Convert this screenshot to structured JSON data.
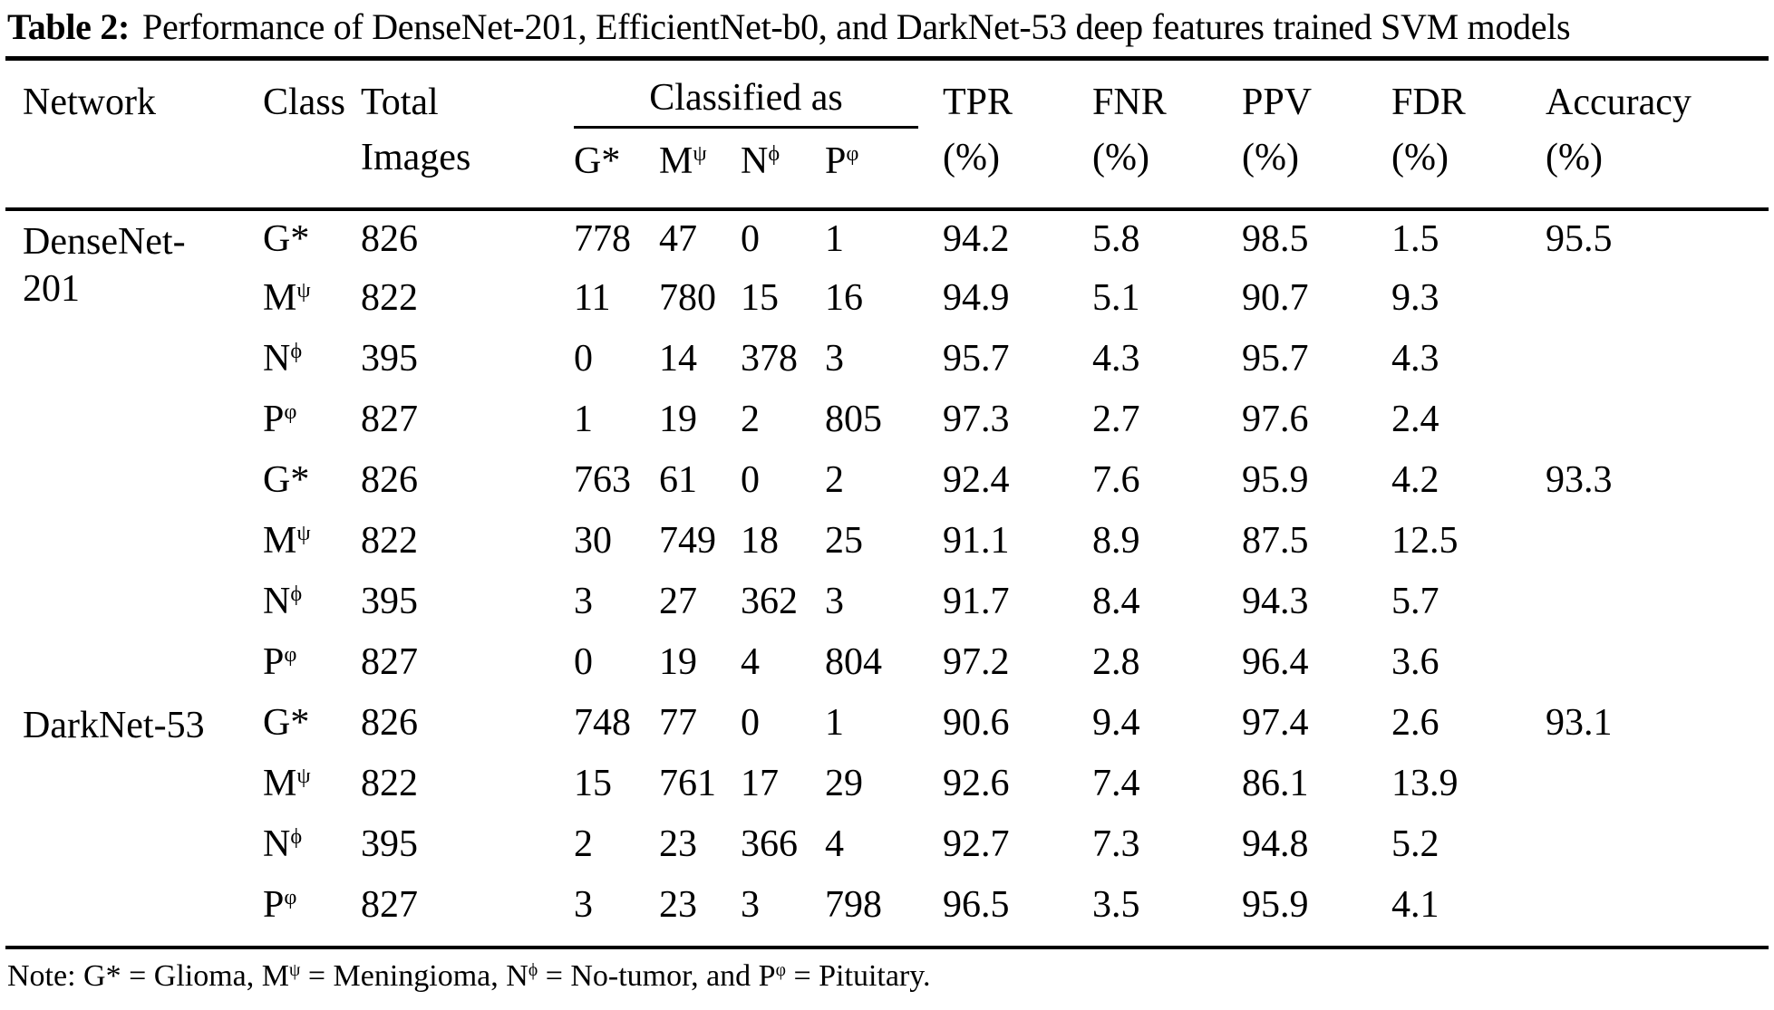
{
  "title": {
    "label": "Table 2:",
    "text": "Performance of DenseNet-201, EfficientNet-b0, and DarkNet-53 deep features trained SVM models"
  },
  "table": {
    "header": {
      "network": "Network",
      "class": "Class",
      "total": [
        "Total",
        "Images"
      ],
      "classified_as": "Classified as",
      "sub_columns": [
        {
          "base": "G*",
          "sup": ""
        },
        {
          "base": "M",
          "sup": "ψ"
        },
        {
          "base": "N",
          "sup": "ϕ"
        },
        {
          "base": "P",
          "sup": "φ"
        }
      ],
      "metrics": [
        {
          "name": "TPR",
          "unit": "(%)"
        },
        {
          "name": "FNR",
          "unit": "(%)"
        },
        {
          "name": "PPV",
          "unit": "(%)"
        },
        {
          "name": "FDR",
          "unit": "(%)"
        },
        {
          "name": "Accuracy",
          "unit": "(%)"
        }
      ]
    },
    "rows": [
      {
        "network_lines": [
          "DenseNet-",
          "201"
        ],
        "class_base": "G*",
        "class_sup": "",
        "total": "826",
        "g": "778",
        "m": "47",
        "n": "0",
        "p": "1",
        "tpr": "94.2",
        "fnr": "5.8",
        "ppv": "98.5",
        "fdr": "1.5",
        "accuracy": "95.5"
      },
      {
        "network_lines": [],
        "class_base": "M",
        "class_sup": "ψ",
        "total": "822",
        "g": "11",
        "m": "780",
        "n": "15",
        "p": "16",
        "tpr": "94.9",
        "fnr": "5.1",
        "ppv": "90.7",
        "fdr": "9.3",
        "accuracy": ""
      },
      {
        "network_lines": [],
        "class_base": "N",
        "class_sup": "ϕ",
        "total": "395",
        "g": "0",
        "m": "14",
        "n": "378",
        "p": "3",
        "tpr": "95.7",
        "fnr": "4.3",
        "ppv": "95.7",
        "fdr": "4.3",
        "accuracy": ""
      },
      {
        "network_lines": [],
        "class_base": "P",
        "class_sup": "φ",
        "total": "827",
        "g": "1",
        "m": "19",
        "n": "2",
        "p": "805",
        "tpr": "97.3",
        "fnr": "2.7",
        "ppv": "97.6",
        "fdr": "2.4",
        "accuracy": ""
      },
      {
        "network_lines": [],
        "class_base": "G*",
        "class_sup": "",
        "total": "826",
        "g": "763",
        "m": "61",
        "n": "0",
        "p": "2",
        "tpr": "92.4",
        "fnr": "7.6",
        "ppv": "95.9",
        "fdr": "4.2",
        "accuracy": "93.3"
      },
      {
        "network_lines": [],
        "class_base": "M",
        "class_sup": "ψ",
        "total": "822",
        "g": "30",
        "m": "749",
        "n": "18",
        "p": "25",
        "tpr": "91.1",
        "fnr": "8.9",
        "ppv": "87.5",
        "fdr": "12.5",
        "accuracy": ""
      },
      {
        "network_lines": [],
        "class_base": "N",
        "class_sup": "ϕ",
        "total": "395",
        "g": "3",
        "m": "27",
        "n": "362",
        "p": "3",
        "tpr": "91.7",
        "fnr": "8.4",
        "ppv": "94.3",
        "fdr": "5.7",
        "accuracy": ""
      },
      {
        "network_lines": [],
        "class_base": "P",
        "class_sup": "φ",
        "total": "827",
        "g": "0",
        "m": "19",
        "n": "4",
        "p": "804",
        "tpr": "97.2",
        "fnr": "2.8",
        "ppv": "96.4",
        "fdr": "3.6",
        "accuracy": ""
      },
      {
        "network_lines": [
          "DarkNet-53"
        ],
        "class_base": "G*",
        "class_sup": "",
        "total": "826",
        "g": "748",
        "m": "77",
        "n": "0",
        "p": "1",
        "tpr": "90.6",
        "fnr": "9.4",
        "ppv": "97.4",
        "fdr": "2.6",
        "accuracy": "93.1"
      },
      {
        "network_lines": [],
        "class_base": "M",
        "class_sup": "ψ",
        "total": "822",
        "g": "15",
        "m": "761",
        "n": "17",
        "p": "29",
        "tpr": "92.6",
        "fnr": "7.4",
        "ppv": "86.1",
        "fdr": "13.9",
        "accuracy": ""
      },
      {
        "network_lines": [],
        "class_base": "N",
        "class_sup": "ϕ",
        "total": "395",
        "g": "2",
        "m": "23",
        "n": "366",
        "p": "4",
        "tpr": "92.7",
        "fnr": "7.3",
        "ppv": "94.8",
        "fdr": "5.2",
        "accuracy": ""
      },
      {
        "network_lines": [],
        "class_base": "P",
        "class_sup": "φ",
        "total": "827",
        "g": "3",
        "m": "23",
        "n": "3",
        "p": "798",
        "tpr": "96.5",
        "fnr": "3.5",
        "ppv": "95.9",
        "fdr": "4.1",
        "accuracy": ""
      }
    ]
  },
  "note": {
    "p1": "Note: G* = Glioma, M",
    "s1": "ψ",
    "p2": " = Meningioma, N",
    "s2": "ϕ",
    "p3": " = No-tumor, and P",
    "s3": "φ",
    "p4": " = Pituitary."
  }
}
